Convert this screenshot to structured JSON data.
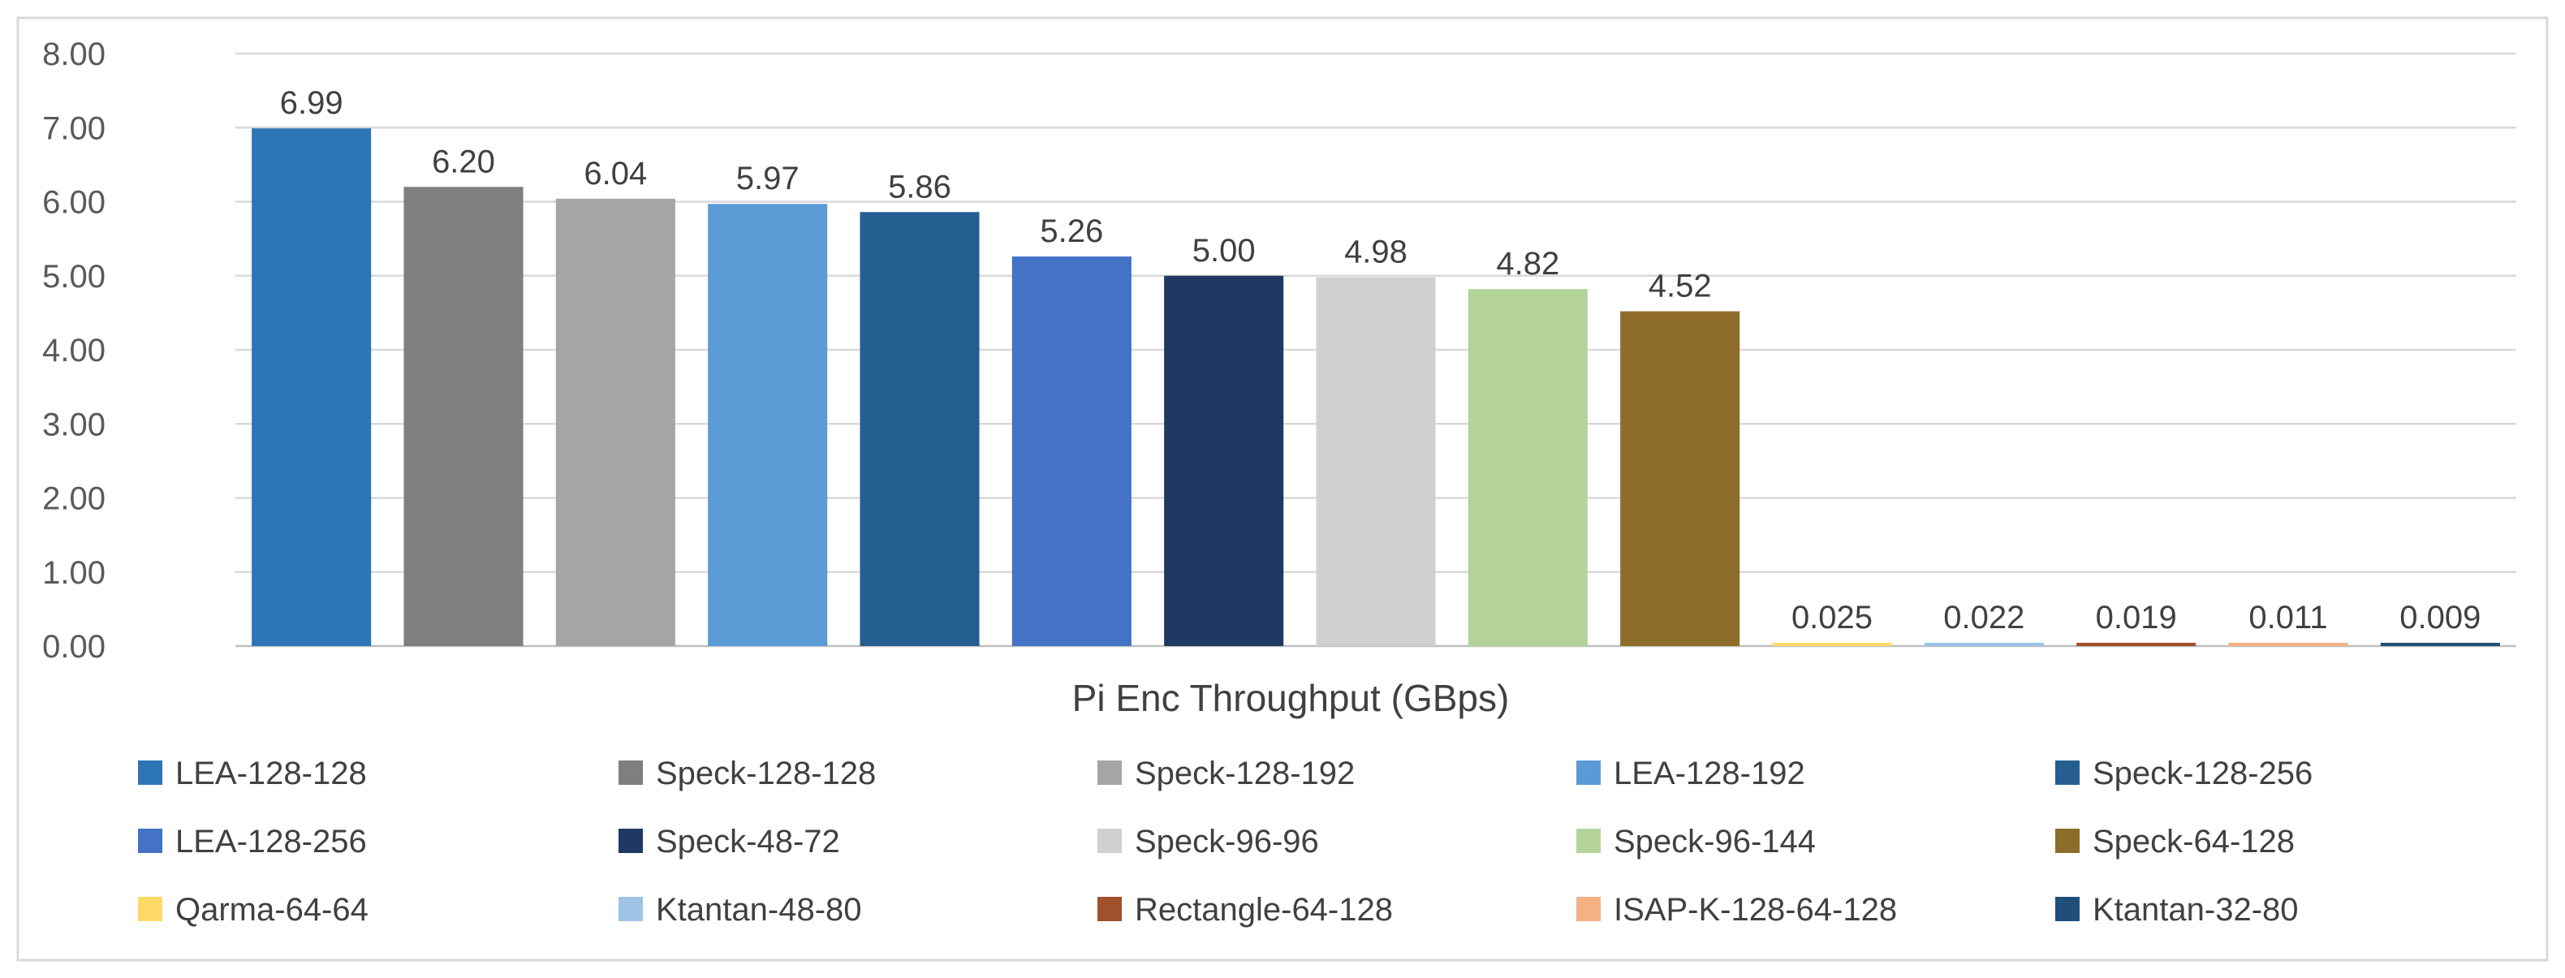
{
  "chart_data": {
    "type": "bar",
    "title": "",
    "xlabel": "Pi Enc Throughput (GBps)",
    "ylabel": "",
    "ylim": [
      0,
      8
    ],
    "yticks": [
      "0.00",
      "1.00",
      "2.00",
      "3.00",
      "4.00",
      "5.00",
      "6.00",
      "7.00",
      "8.00"
    ],
    "grid": true,
    "legend_position": "bottom",
    "categories": [
      "LEA-128-128",
      "Speck-128-128",
      "Speck-128-192",
      "LEA-128-192",
      "Speck-128-256",
      "LEA-128-256",
      "Speck-48-72",
      "Speck-96-96",
      "Speck-96-144",
      "Speck-64-128",
      "Qarma-64-64",
      "Ktantan-48-80",
      "Rectangle-64-128",
      "ISAP-K-128-64-128",
      "Ktantan-32-80"
    ],
    "values": [
      6.99,
      6.2,
      6.04,
      5.97,
      5.86,
      5.26,
      5.0,
      4.98,
      4.82,
      4.52,
      0.025,
      0.022,
      0.019,
      0.011,
      0.009
    ],
    "value_labels": [
      "6.99",
      "6.20",
      "6.04",
      "5.97",
      "5.86",
      "5.26",
      "5.00",
      "4.98",
      "4.82",
      "4.52",
      "0.025",
      "0.022",
      "0.019",
      "0.011",
      "0.009"
    ],
    "colors": [
      "#2E75B6",
      "#7F7F7F",
      "#A5A5A5",
      "#5B9BD5",
      "#255E91",
      "#4472C4",
      "#1F3864",
      "#D0D0D0",
      "#B4D39B",
      "#8E6C2A",
      "#FFD966",
      "#9DC3E6",
      "#A0502A",
      "#F4B183",
      "#1F4E79"
    ]
  }
}
